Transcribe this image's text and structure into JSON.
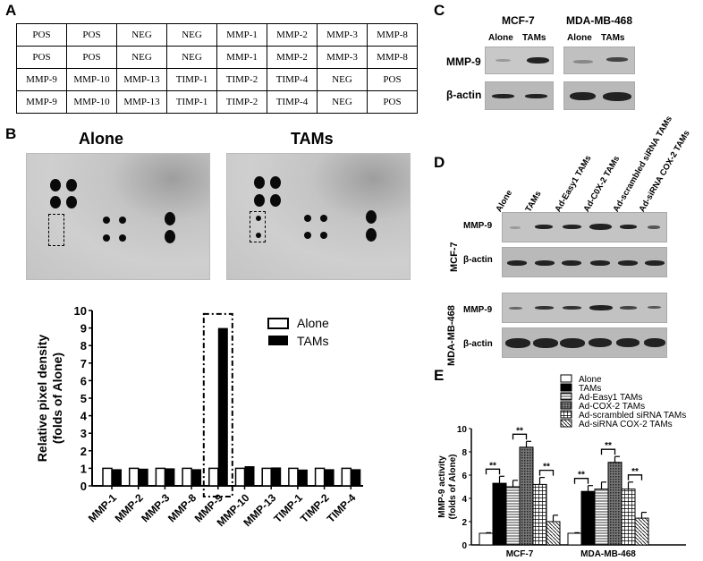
{
  "panel_a": {
    "letter": "A",
    "rows": [
      [
        "POS",
        "POS",
        "NEG",
        "NEG",
        "MMP-1",
        "MMP-2",
        "MMP-3",
        "MMP-8"
      ],
      [
        "POS",
        "POS",
        "NEG",
        "NEG",
        "MMP-1",
        "MMP-2",
        "MMP-3",
        "MMP-8"
      ],
      [
        "MMP-9",
        "MMP-10",
        "MMP-13",
        "TIMP-1",
        "TIMP-2",
        "TIMP-4",
        "NEG",
        "POS"
      ],
      [
        "MMP-9",
        "MMP-10",
        "MMP-13",
        "TIMP-1",
        "TIMP-2",
        "TIMP-4",
        "NEG",
        "POS"
      ]
    ]
  },
  "panel_b": {
    "letter": "B",
    "membrane_titles": [
      "Alone",
      "TAMs"
    ]
  },
  "panel_c": {
    "letter": "C",
    "cell_lines": [
      "MCF-7",
      "MDA-MB-468"
    ],
    "lanes": [
      "Alone",
      "TAMs"
    ],
    "rows": [
      "MMP-9",
      "β-actin"
    ]
  },
  "panel_d": {
    "letter": "D",
    "lanes": [
      "Alone",
      "TAMs",
      "Ad-Easy1 TAMs",
      "Ad-C0X-2 TAMs",
      "Ad-scrambled siRNA TAMs",
      "Ad-siRNA COX-2 TAMs"
    ],
    "cell_lines": [
      "MCF-7",
      "MDA-MB-468"
    ],
    "rows": [
      "MMP-9",
      "β-actin"
    ]
  },
  "panel_e": {
    "letter": "E"
  },
  "chart_data": [
    {
      "type": "bar",
      "title": "",
      "xlabel": "",
      "ylabel": "Relative pixel density (folds of Alone)",
      "ylim": [
        0,
        10
      ],
      "yticks": [
        0,
        1,
        2,
        3,
        4,
        5,
        6,
        7,
        8,
        9,
        10
      ],
      "categories": [
        "MMP-1",
        "MMP-2",
        "MMP-3",
        "MMP-8",
        "MMP-9",
        "MMP-10",
        "MMP-13",
        "TIMP-1",
        "TIMP-2",
        "TIMP-4"
      ],
      "series": [
        {
          "name": "Alone",
          "values": [
            1,
            1,
            1,
            1,
            1,
            1,
            1,
            1,
            1,
            1
          ]
        },
        {
          "name": "TAMs",
          "values": [
            0.95,
            0.98,
            1.0,
            0.95,
            9.0,
            1.12,
            1.05,
            0.93,
            0.95,
            0.95
          ]
        }
      ],
      "legend_position": "upper right",
      "annotations": [
        "dashed box around MMP-9"
      ]
    },
    {
      "type": "bar",
      "title": "",
      "xlabel": "",
      "ylabel": "MMP-9 activity (folds of Alone)",
      "ylim": [
        0,
        10
      ],
      "yticks": [
        0,
        2,
        4,
        6,
        8,
        10
      ],
      "categories": [
        "MCF-7",
        "MDA-MB-468"
      ],
      "series": [
        {
          "name": "Alone",
          "values": [
            1.0,
            1.0
          ],
          "errors": [
            0.05,
            0.05
          ]
        },
        {
          "name": "TAMs",
          "values": [
            5.3,
            4.6
          ],
          "errors": [
            0.6,
            0.5
          ]
        },
        {
          "name": "Ad-Easy1 TAMs",
          "values": [
            5.0,
            4.8
          ],
          "errors": [
            0.55,
            0.6
          ]
        },
        {
          "name": "Ad-COX-2 TAMs",
          "values": [
            8.4,
            7.1
          ],
          "errors": [
            0.5,
            0.5
          ]
        },
        {
          "name": "Ad-scrambled siRNA TAMs",
          "values": [
            5.2,
            4.8
          ],
          "errors": [
            0.6,
            0.6
          ]
        },
        {
          "name": "Ad-siRNA COX-2 TAMs",
          "values": [
            2.0,
            2.3
          ],
          "errors": [
            0.55,
            0.5
          ]
        }
      ],
      "significance": "**",
      "legend_position": "upper right"
    }
  ]
}
